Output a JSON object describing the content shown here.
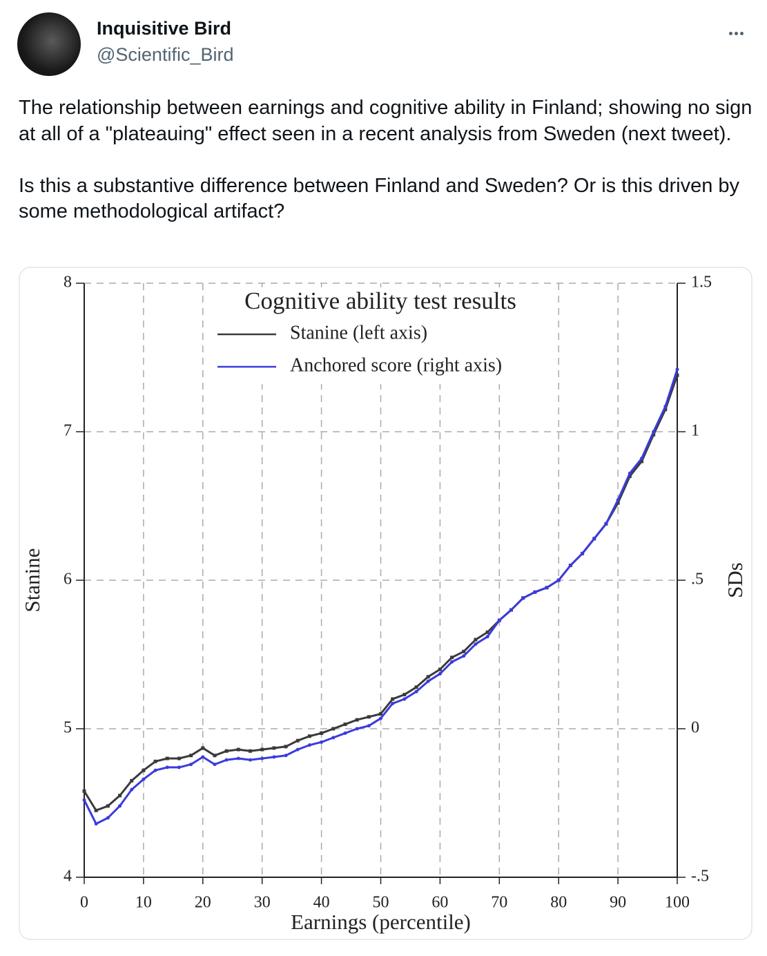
{
  "tweet": {
    "author_name": "Inquisitive Bird",
    "handle": "@Scientific_Bird",
    "paragraphs": [
      "The relationship between earnings and cognitive ability in Finland; showing no sign at all of a \"plateauing\" effect seen in a recent analysis from Sweden (next tweet).",
      "Is this a substantive difference between Finland and Sweden? Or is this driven by some methodological artifact?"
    ]
  },
  "chart_data": {
    "type": "line",
    "title": "Cognitive ability test results",
    "x_label": "Earnings (percentile)",
    "y_label": "Stanine",
    "y2_label": "SDs",
    "x": [
      0,
      2,
      4,
      6,
      8,
      10,
      12,
      14,
      16,
      18,
      20,
      22,
      24,
      26,
      28,
      30,
      32,
      34,
      36,
      38,
      40,
      42,
      44,
      46,
      48,
      50,
      52,
      54,
      56,
      58,
      60,
      62,
      64,
      66,
      68,
      70,
      72,
      74,
      76,
      78,
      80,
      82,
      84,
      86,
      88,
      90,
      92,
      94,
      96,
      98,
      100
    ],
    "series": [
      {
        "name": "Stanine (left axis)",
        "color": "#3a3a3a",
        "axis": "y",
        "values": [
          4.58,
          4.45,
          4.48,
          4.55,
          4.65,
          4.72,
          4.78,
          4.8,
          4.8,
          4.82,
          4.87,
          4.82,
          4.85,
          4.86,
          4.85,
          4.86,
          4.87,
          4.88,
          4.92,
          4.95,
          4.97,
          5.0,
          5.03,
          5.06,
          5.08,
          5.1,
          5.2,
          5.23,
          5.28,
          5.35,
          5.4,
          5.48,
          5.52,
          5.6,
          5.65,
          5.73,
          5.8,
          5.88,
          5.92,
          5.95,
          6.0,
          6.1,
          6.18,
          6.28,
          6.38,
          6.52,
          6.7,
          6.8,
          6.98,
          7.15,
          7.38
        ]
      },
      {
        "name": "Anchored score (right axis)",
        "color": "#3b3bdc",
        "axis": "y2",
        "values": [
          -0.24,
          -0.32,
          -0.3,
          -0.26,
          -0.205,
          -0.17,
          -0.14,
          -0.13,
          -0.13,
          -0.12,
          -0.095,
          -0.12,
          -0.105,
          -0.1,
          -0.105,
          -0.1,
          -0.095,
          -0.09,
          -0.07,
          -0.055,
          -0.045,
          -0.03,
          -0.015,
          0,
          0.01,
          0.035,
          0.085,
          0.1,
          0.125,
          0.16,
          0.185,
          0.225,
          0.245,
          0.285,
          0.31,
          0.365,
          0.4,
          0.44,
          0.46,
          0.475,
          0.5,
          0.55,
          0.59,
          0.64,
          0.69,
          0.77,
          0.86,
          0.91,
          1.0,
          1.085,
          1.21
        ]
      }
    ],
    "xlim": [
      0,
      100
    ],
    "xticks": [
      0,
      10,
      20,
      30,
      40,
      50,
      60,
      70,
      80,
      90,
      100
    ],
    "ylim": [
      4,
      8
    ],
    "yticks": [
      4,
      5,
      6,
      7,
      8
    ],
    "y2lim": [
      -0.5,
      1.5
    ],
    "y2ticks": [
      {
        "value": -0.5,
        "label": "-.5"
      },
      0,
      {
        "value": 0.5,
        "label": ".5"
      },
      1,
      1.5
    ],
    "grid": true
  }
}
